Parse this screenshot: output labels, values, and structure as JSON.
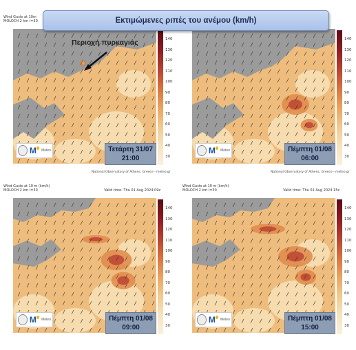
{
  "title": "Εκτιμώμενες ριπές του ανέμου (km/h)",
  "annotation": "Περιοχή πυρκαγιάς",
  "colorbar_ticks": [
    "140",
    "130",
    "120",
    "110",
    "100",
    "90",
    "80",
    "70",
    "60",
    "50",
    "40",
    "30"
  ],
  "logo": {
    "brand": "M",
    "text": "Meteo"
  },
  "panels": [
    {
      "hdr1": "Wind Gusts at 10m",
      "hdr2": "MOLOCH 2 km I=30",
      "valid": "",
      "day": "Τετάρτη 31/07",
      "time": "21:00",
      "source": "National Observatory of Athens, Greece - meteo.gr"
    },
    {
      "hdr1": "",
      "hdr2": "",
      "valid": "",
      "day": "Πέμπτη 01/08",
      "time": "06:00",
      "source": "National Observatory of Athens, Greece - meteo.gr"
    },
    {
      "hdr1": "Wind Gusts at 10 m (km/h)",
      "hdr2": "MOLOCH 2 km I=30",
      "valid": "Valid time: Thu 01 Aug 2024 09z",
      "day": "Πέμπτη 01/08",
      "time": "09:00",
      "source": ""
    },
    {
      "hdr1": "Wind Gusts at 10 m (km/h)",
      "hdr2": "MOLOCH 2 km I=30",
      "valid": "Valid time: Thu 01 Aug 2024 15z",
      "day": "Πέμπτη 01/08",
      "time": "15:00",
      "source": ""
    }
  ],
  "colors": {
    "land_light": "#f6dcae",
    "land_mid": "#eebd7e",
    "land_strong": "#e08a4a",
    "hot": "#b8402f",
    "sea_gray": "#9b9b9b"
  }
}
